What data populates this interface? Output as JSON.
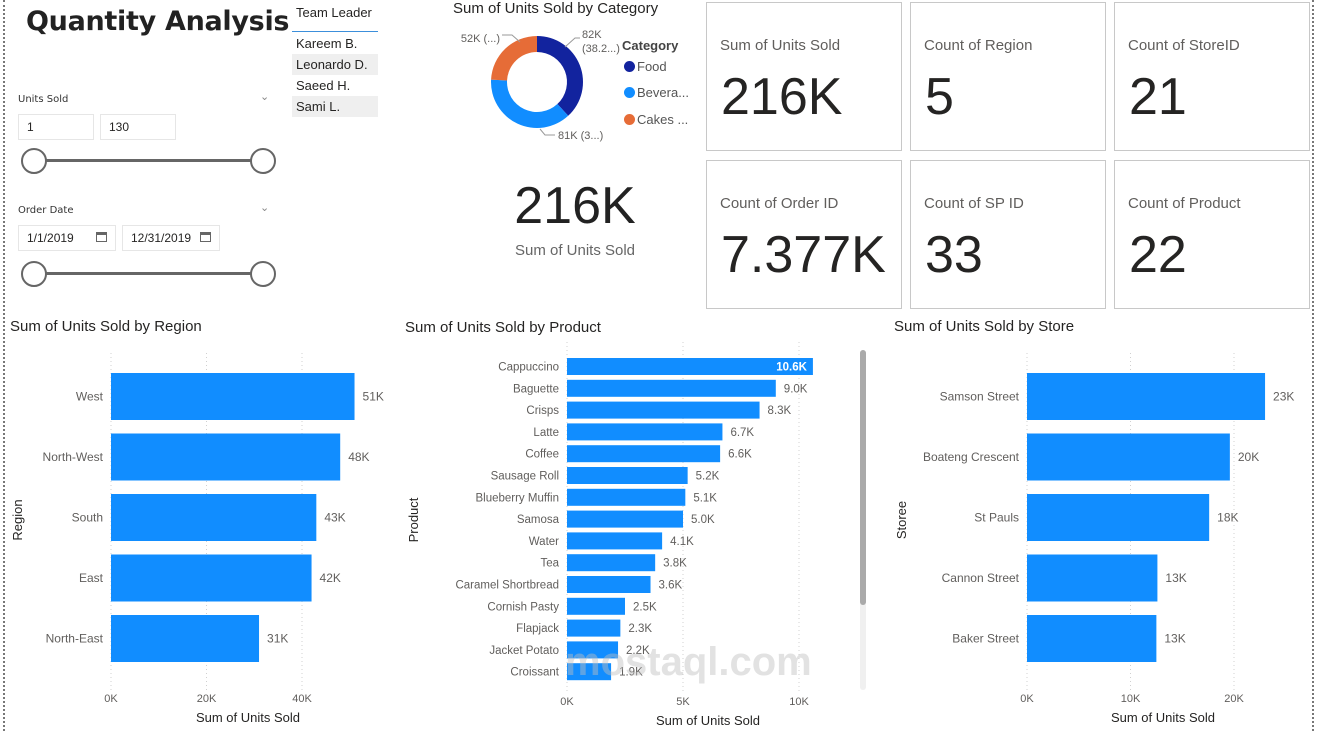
{
  "page": {
    "title": "Quantity Analysis",
    "watermark": "mostaql.com"
  },
  "slicers": {
    "units_sold": {
      "label": "Units Sold",
      "min_value": "1",
      "max_value": "130",
      "range_fraction": [
        0,
        1
      ]
    },
    "order_date": {
      "label": "Order Date",
      "start_value": "1/1/2019",
      "end_value": "12/31/2019",
      "range_fraction": [
        0,
        1
      ]
    },
    "team_leader": {
      "header": "Team Leader",
      "items": [
        "Kareem B.",
        "Leonardo D.",
        "Saeed H.",
        "Sami L."
      ]
    }
  },
  "kpi_main": {
    "value": "216K",
    "label": "Sum of Units Sold"
  },
  "cards": [
    {
      "label": "Sum of Units Sold",
      "value": "216K"
    },
    {
      "label": "Count of Region",
      "value": "5"
    },
    {
      "label": "Count of StoreID",
      "value": "21"
    },
    {
      "label": "Count of Order ID",
      "value": "7.377K"
    },
    {
      "label": "Count of SP ID",
      "value": "33"
    },
    {
      "label": "Count of Product",
      "value": "22"
    }
  ],
  "colors": {
    "bar": "#118dff",
    "food": "#12239e",
    "beverages": "#118dff",
    "cakes": "#e66c37"
  },
  "chart_data": [
    {
      "type": "pie",
      "variant": "donut",
      "title": "Sum of Units Sold by Category",
      "legend_title": "Category",
      "legend_position": "right",
      "categories": [
        "Food",
        "Beverages",
        "Cakes"
      ],
      "legend_labels": [
        "Food",
        "Bevera...",
        "Cakes ..."
      ],
      "values": [
        82000,
        81000,
        52000
      ],
      "data_labels": [
        "82K (38.2...)",
        "81K (3...)",
        "52K (...)"
      ],
      "colors": [
        "#12239e",
        "#118dff",
        "#e66c37"
      ]
    },
    {
      "type": "bar",
      "orientation": "horizontal",
      "title": "Sum of Units Sold by Region",
      "categories": [
        "West",
        "North-West",
        "South",
        "East",
        "North-East"
      ],
      "values": [
        51000,
        48000,
        43000,
        42000,
        31000
      ],
      "data_labels": [
        "51K",
        "48K",
        "43K",
        "42K",
        "31K"
      ],
      "xlabel": "Sum of Units Sold",
      "ylabel": "Region",
      "xlim": [
        0,
        50000
      ],
      "xticks": [
        0,
        20000,
        40000
      ],
      "xtick_labels": [
        "0K",
        "20K",
        "40K"
      ],
      "grid": true
    },
    {
      "type": "bar",
      "orientation": "horizontal",
      "title": "Sum of Units Sold by Product",
      "categories": [
        "Cappuccino",
        "Baguette",
        "Crisps",
        "Latte",
        "Coffee",
        "Sausage Roll",
        "Blueberry Muffin",
        "Samosa",
        "Water",
        "Tea",
        "Caramel Shortbread",
        "Cornish Pasty",
        "Flapjack",
        "Jacket Potato",
        "Croissant"
      ],
      "values": [
        10600,
        9000,
        8300,
        6700,
        6600,
        5200,
        5100,
        5000,
        4100,
        3800,
        3600,
        2500,
        2300,
        2200,
        1900
      ],
      "data_labels": [
        "10.6K",
        "9.0K",
        "8.3K",
        "6.7K",
        "6.6K",
        "5.2K",
        "5.1K",
        "5.0K",
        "4.1K",
        "3.8K",
        "3.6K",
        "2.5K",
        "2.3K",
        "2.2K",
        "1.9K"
      ],
      "xlabel": "Sum of Units Sold",
      "ylabel": "Product",
      "xlim": [
        0,
        10000
      ],
      "xticks": [
        0,
        5000,
        10000
      ],
      "xtick_labels": [
        "0K",
        "5K",
        "10K"
      ],
      "grid": true,
      "scroll_fraction": 0.75
    },
    {
      "type": "bar",
      "orientation": "horizontal",
      "title": "Sum of Units Sold by Store",
      "categories": [
        "Samson Street",
        "Boateng Crescent",
        "St Pauls",
        "Cannon Street",
        "Baker Street"
      ],
      "values": [
        23000,
        19600,
        17600,
        12600,
        12500
      ],
      "data_labels": [
        "23K",
        "20K",
        "18K",
        "13K",
        "13K"
      ],
      "xlabel": "Sum of Units Sold",
      "ylabel": "Storee",
      "xlim": [
        0,
        20000
      ],
      "xticks": [
        0,
        10000,
        20000
      ],
      "xtick_labels": [
        "0K",
        "10K",
        "20K"
      ],
      "grid": true
    }
  ]
}
